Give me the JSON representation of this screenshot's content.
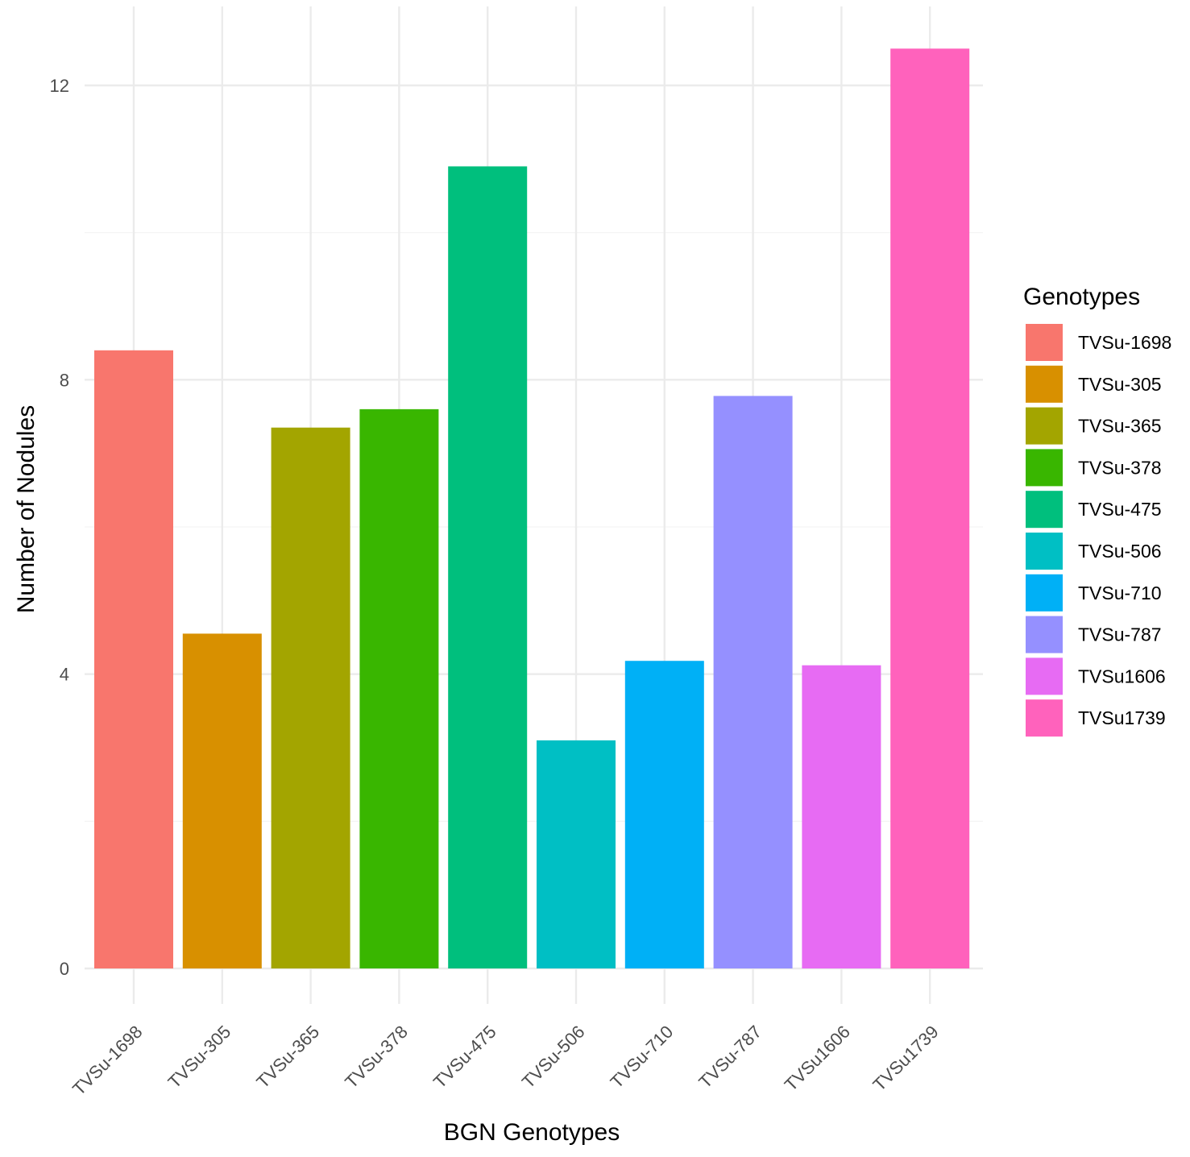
{
  "chart_data": {
    "type": "bar",
    "title": "",
    "xlabel": "BGN Genotypes",
    "ylabel": "Number of Nodules",
    "ylim": [
      -1.0,
      13.1
    ],
    "yticks": [
      0,
      4,
      8,
      12
    ],
    "grid": true,
    "legend_position": "right",
    "legend_title": "Genotypes",
    "categories": [
      "TVSu-1698",
      "TVSu-305",
      "TVSu-365",
      "TVSu-378",
      "TVSu-475",
      "TVSu-506",
      "TVSu-710",
      "TVSu-787",
      "TVSu1606",
      "TVSu1739"
    ],
    "values": [
      8.4,
      4.55,
      7.35,
      7.6,
      10.9,
      3.1,
      4.18,
      7.78,
      4.12,
      12.5
    ],
    "colors": [
      "#F8766D",
      "#D89000",
      "#A3A500",
      "#39B600",
      "#00BF7D",
      "#00BFC4",
      "#00B0F6",
      "#9590FF",
      "#E76BF3",
      "#FF62BC"
    ]
  }
}
